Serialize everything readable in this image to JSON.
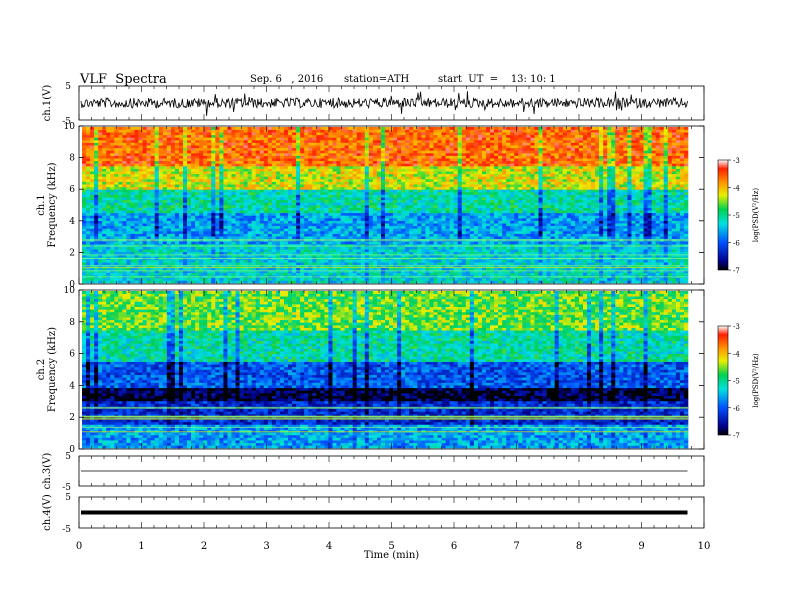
{
  "header": {
    "title": "VLF  Spectra",
    "date": "Sep. 6   , 2016",
    "station": "station=ATH",
    "start": "start  UT  =    13: 10: 1"
  },
  "chart_data": [
    {
      "type": "line",
      "ylabel": "ch.1(V)",
      "ylim": [
        -5,
        5
      ],
      "y_ticks": [
        "5",
        "-5"
      ],
      "series_color": "#000000",
      "description": "noisy waveform trace"
    },
    {
      "type": "heatmap",
      "ylabel": "ch.1\nFrequency (kHz)",
      "ylim": [
        0,
        10
      ],
      "y_ticks": [
        "0",
        "2",
        "4",
        "6",
        "8",
        "10"
      ],
      "colorbar": {
        "label": "log(PSD(V²/Hz)",
        "range": [
          -7,
          -3
        ],
        "ticks": [
          "-3",
          "-4",
          "-5",
          "-6",
          "-7"
        ]
      },
      "bands": [
        {
          "from": 0,
          "to": 2.5,
          "level": -5.3
        },
        {
          "from": 2.5,
          "to": 4.5,
          "level": -5.6
        },
        {
          "from": 4.5,
          "to": 6,
          "level": -5.1
        },
        {
          "from": 6,
          "to": 7.5,
          "level": -4.3
        },
        {
          "from": 7.5,
          "to": 10,
          "level": -3.6
        }
      ]
    },
    {
      "type": "heatmap",
      "ylabel": "ch.2\nFrequency (kHz)",
      "ylim": [
        0,
        10
      ],
      "y_ticks": [
        "0",
        "2",
        "4",
        "6",
        "8",
        "10"
      ],
      "colorbar": {
        "label": "log(PSD(V²/Hz)",
        "range": [
          -7,
          -3
        ],
        "ticks": [
          "-3",
          "-4",
          "-5",
          "-6",
          "-7"
        ]
      },
      "bands": [
        {
          "from": 0,
          "to": 1.5,
          "level": -5.6
        },
        {
          "from": 1.5,
          "to": 3,
          "level": -6.3
        },
        {
          "from": 3,
          "to": 3.8,
          "level": -6.9
        },
        {
          "from": 3.8,
          "to": 5.5,
          "level": -6.0
        },
        {
          "from": 5.5,
          "to": 7.5,
          "level": -5.1
        },
        {
          "from": 7.5,
          "to": 10,
          "level": -4.6
        }
      ]
    },
    {
      "type": "line",
      "ylabel": "ch.3(V)",
      "ylim": [
        -5,
        5
      ],
      "y_ticks": [
        "5",
        "-5"
      ],
      "description": "flat trace near 0"
    },
    {
      "type": "line",
      "ylabel": "ch.4(V)",
      "ylim": [
        -5,
        5
      ],
      "y_ticks": [
        "5",
        "-5"
      ],
      "description": "thick flat trace near 0"
    }
  ],
  "x_axis": {
    "label": "Time  (min)",
    "range": [
      0,
      10
    ],
    "data_end": 9.8,
    "ticks": [
      "0",
      "1",
      "2",
      "3",
      "4",
      "5",
      "6",
      "7",
      "8",
      "9",
      "10"
    ]
  }
}
